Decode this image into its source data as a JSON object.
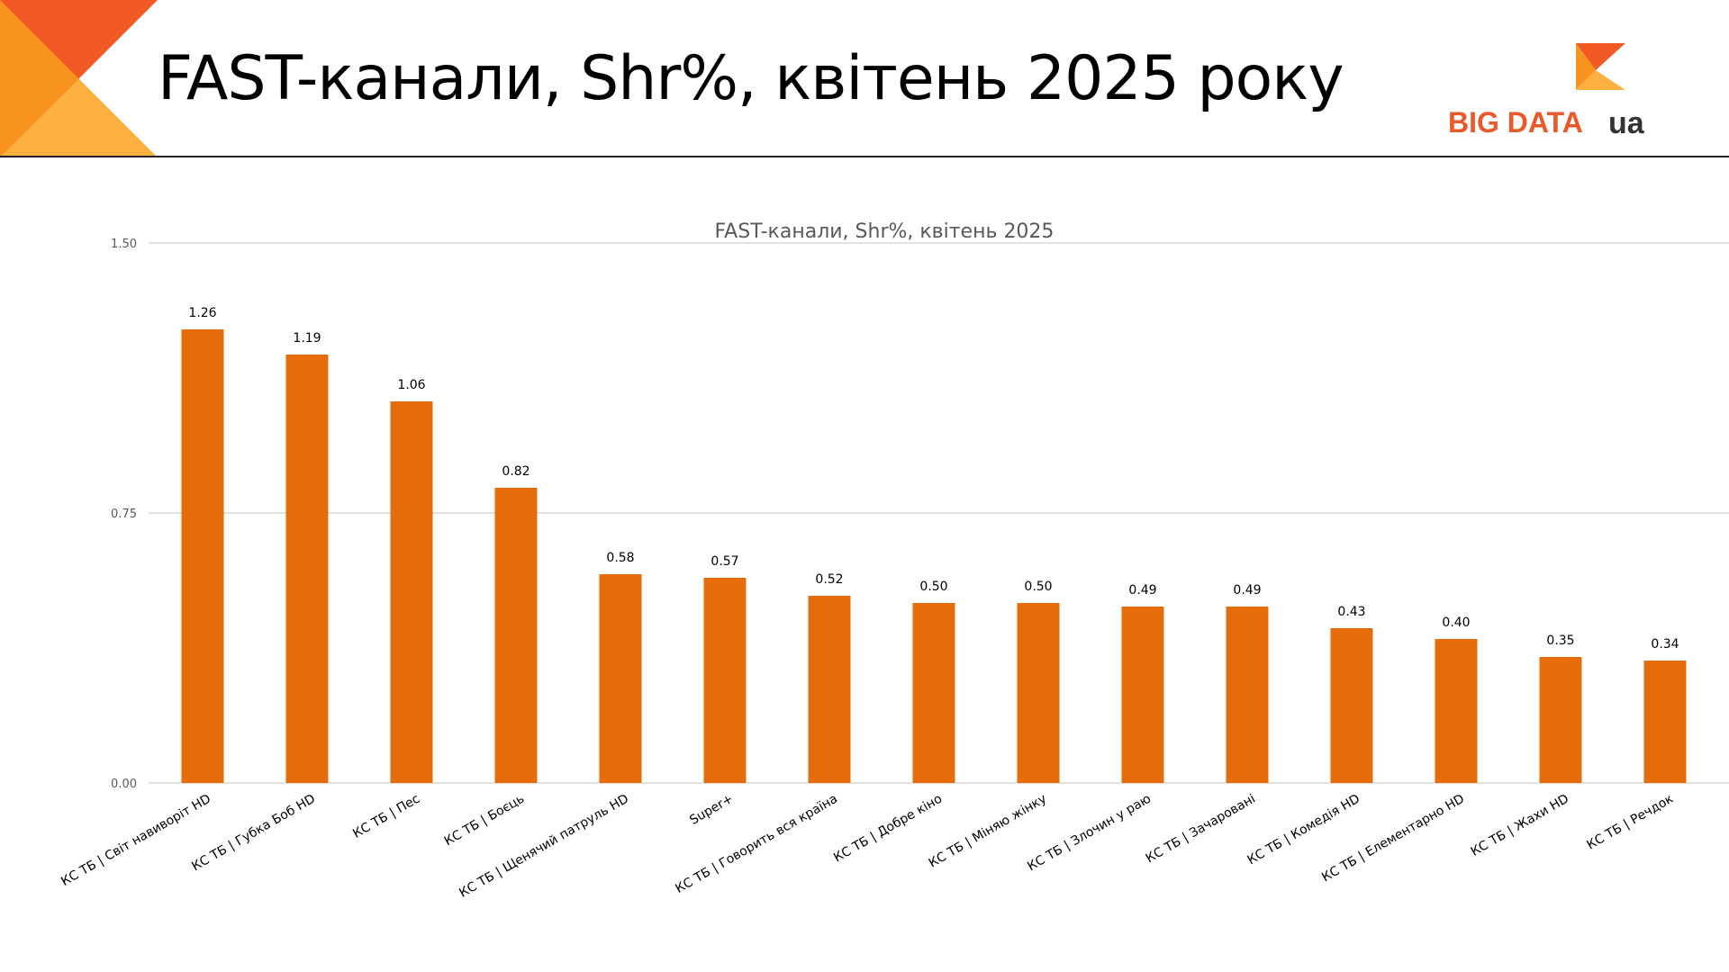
{
  "slide": {
    "title": "FAST-канали, Shr%, квітень 2025 року"
  },
  "logo": {
    "text": "BIG DATA",
    "suffix": "ua",
    "brand_color": "#E85A2A",
    "accent_color": "#F7A535"
  },
  "colors": {
    "bar": "#E46C0A",
    "grid": "#D9D9D9",
    "deco_dark": "#F15A24",
    "deco_mid": "#F7931E",
    "deco_light": "#FBB040"
  },
  "chart_data": {
    "type": "bar",
    "title": "FAST-канали, Shr%, квітень 2025",
    "xlabel": "",
    "ylabel": "",
    "ylim": [
      0,
      1.5
    ],
    "yticks": [
      "0.00",
      "0.75",
      "1.50"
    ],
    "grid": true,
    "legend": "none",
    "categories": [
      "КС ТБ | Світ навиворіт HD",
      "КС ТБ | Губка Боб HD",
      "КС ТБ | Пес",
      "КС ТБ | Боєць",
      "КС ТБ | Щенячий патруль HD",
      "Super+",
      "КС ТБ | Говорить вся країна",
      "КС ТБ | Добре кіно",
      "КС ТБ | Міняю жінку",
      "КС ТБ | Злочин у раю",
      "КС ТБ | Зачаровані",
      "КС ТБ | Комедія HD",
      "КС ТБ | Елементарно HD",
      "КС ТБ | Жахи HD",
      "КС ТБ | Речдок"
    ],
    "values": [
      1.26,
      1.19,
      1.06,
      0.82,
      0.58,
      0.57,
      0.52,
      0.5,
      0.5,
      0.49,
      0.49,
      0.43,
      0.4,
      0.35,
      0.34
    ],
    "value_labels": [
      "1.26",
      "1.19",
      "1.06",
      "0.82",
      "0.58",
      "0.57",
      "0.52",
      "0.50",
      "0.50",
      "0.49",
      "0.49",
      "0.43",
      "0.40",
      "0.35",
      "0.34"
    ]
  }
}
